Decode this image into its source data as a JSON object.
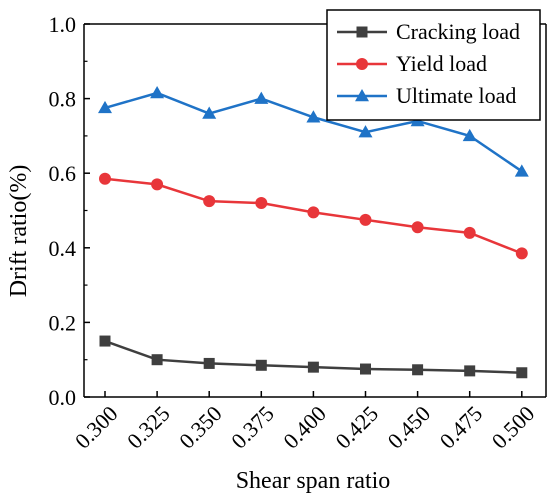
{
  "chart_data": {
    "type": "line",
    "title": "",
    "xlabel": "Shear span ratio",
    "ylabel": "Drift ratio(%)",
    "categories": [
      "0.300",
      "0.325",
      "0.350",
      "0.375",
      "0.400",
      "0.425",
      "0.450",
      "0.475",
      "0.500"
    ],
    "ylim": [
      0.0,
      1.0
    ],
    "yticks": [
      "0.0",
      "0.2",
      "0.4",
      "0.6",
      "0.8",
      "1.0"
    ],
    "grid": false,
    "legend_position": "top-right",
    "series": [
      {
        "name": "Cracking load",
        "marker": "square",
        "color": "#3f3f3f",
        "values": [
          0.15,
          0.1,
          0.09,
          0.085,
          0.08,
          0.075,
          0.073,
          0.07,
          0.065
        ]
      },
      {
        "name": "Yield load",
        "marker": "circle",
        "color": "#e8363a",
        "values": [
          0.585,
          0.57,
          0.525,
          0.52,
          0.495,
          0.475,
          0.455,
          0.44,
          0.385
        ]
      },
      {
        "name": "Ultimate load",
        "marker": "triangle",
        "color": "#1f73c7",
        "values": [
          0.775,
          0.815,
          0.76,
          0.8,
          0.75,
          0.71,
          0.74,
          0.7,
          0.605
        ]
      }
    ]
  }
}
